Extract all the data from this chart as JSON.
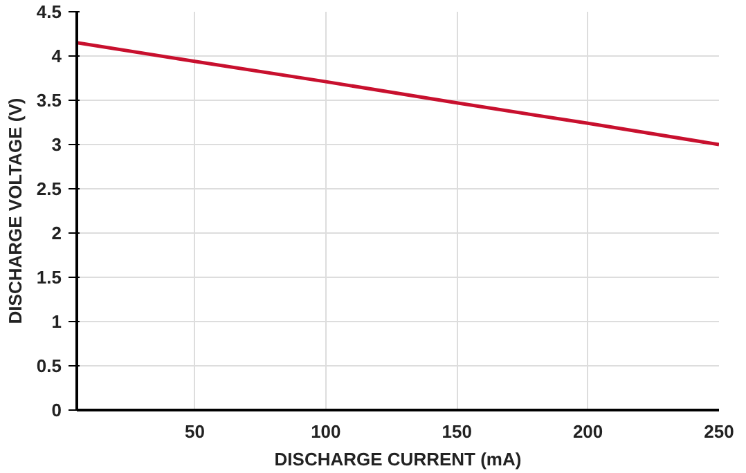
{
  "chart_data": {
    "type": "line",
    "xlabel": "DISCHARGE CURRENT (mA)",
    "ylabel": "DISCHARGE VOLTAGE (V)",
    "x": [
      5,
      50,
      100,
      150,
      200,
      250
    ],
    "series": [
      {
        "color": "#c8102e",
        "values": [
          4.15,
          3.94,
          3.71,
          3.47,
          3.24,
          3.0
        ]
      }
    ],
    "xlim": [
      5,
      250
    ],
    "xticks": [
      50,
      100,
      150,
      200,
      250
    ],
    "ylim": [
      0,
      4.5
    ],
    "yticks": [
      0,
      0.5,
      1,
      1.5,
      2,
      2.5,
      3,
      3.5,
      4,
      4.5
    ],
    "grid": true,
    "marker": "none",
    "line_style": "solid"
  }
}
